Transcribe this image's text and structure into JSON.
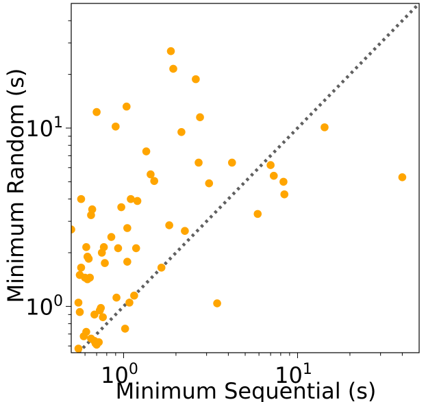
{
  "chart_data": {
    "type": "scatter",
    "xlabel": "Minimum Sequential (s)",
    "ylabel": "Minimum Random (s)",
    "xscale": "log",
    "yscale": "log",
    "xlim": [
      0.5,
      50
    ],
    "ylim": [
      0.55,
      50
    ],
    "grid": false,
    "marker_color": "#ffa500",
    "reference_line": {
      "style": "dotted",
      "color": "#606060",
      "equation": "y = x"
    },
    "x_ticks": [
      {
        "value": 1,
        "base": "10",
        "exp": "0"
      },
      {
        "value": 10,
        "base": "10",
        "exp": "1"
      }
    ],
    "y_ticks": [
      {
        "value": 1,
        "base": "10",
        "exp": "0"
      },
      {
        "value": 10,
        "base": "10",
        "exp": "1"
      }
    ],
    "points": [
      [
        0.5,
        2.7
      ],
      [
        0.55,
        0.58
      ],
      [
        0.55,
        1.05
      ],
      [
        0.56,
        0.93
      ],
      [
        0.56,
        1.5
      ],
      [
        0.57,
        1.65
      ],
      [
        0.57,
        4.0
      ],
      [
        0.59,
        0.68
      ],
      [
        0.6,
        1.45
      ],
      [
        0.61,
        2.15
      ],
      [
        0.61,
        0.72
      ],
      [
        0.62,
        1.9
      ],
      [
        0.62,
        1.42
      ],
      [
        0.63,
        1.85
      ],
      [
        0.64,
        1.45
      ],
      [
        0.65,
        3.25
      ],
      [
        0.65,
        0.66
      ],
      [
        0.66,
        3.5
      ],
      [
        0.68,
        0.64
      ],
      [
        0.68,
        0.9
      ],
      [
        0.69,
        0.62
      ],
      [
        0.7,
        12.3
      ],
      [
        0.7,
        0.61
      ],
      [
        0.72,
        0.63
      ],
      [
        0.73,
        0.95
      ],
      [
        0.74,
        0.98
      ],
      [
        0.75,
        2.0
      ],
      [
        0.76,
        0.87
      ],
      [
        0.77,
        2.15
      ],
      [
        0.78,
        1.75
      ],
      [
        0.85,
        2.45
      ],
      [
        0.9,
        10.2
      ],
      [
        0.91,
        1.12
      ],
      [
        0.93,
        2.12
      ],
      [
        0.97,
        3.6
      ],
      [
        1.02,
        0.75
      ],
      [
        1.04,
        13.2
      ],
      [
        1.05,
        2.75
      ],
      [
        1.05,
        1.78
      ],
      [
        1.08,
        1.05
      ],
      [
        1.1,
        4.0
      ],
      [
        1.15,
        1.15
      ],
      [
        1.18,
        2.12
      ],
      [
        1.2,
        3.9
      ],
      [
        1.35,
        7.4
      ],
      [
        1.43,
        5.5
      ],
      [
        1.5,
        5.05
      ],
      [
        1.65,
        1.65
      ],
      [
        1.83,
        2.85
      ],
      [
        1.87,
        27.0
      ],
      [
        1.93,
        21.5
      ],
      [
        2.15,
        9.5
      ],
      [
        2.25,
        2.65
      ],
      [
        2.6,
        18.8
      ],
      [
        2.7,
        6.4
      ],
      [
        2.75,
        11.5
      ],
      [
        3.1,
        4.9
      ],
      [
        3.45,
        1.04
      ],
      [
        4.2,
        6.4
      ],
      [
        5.9,
        3.3
      ],
      [
        7.0,
        6.2
      ],
      [
        7.3,
        5.4
      ],
      [
        8.3,
        5.0
      ],
      [
        8.4,
        4.25
      ],
      [
        14.3,
        10.1
      ],
      [
        40.0,
        5.3
      ]
    ]
  }
}
